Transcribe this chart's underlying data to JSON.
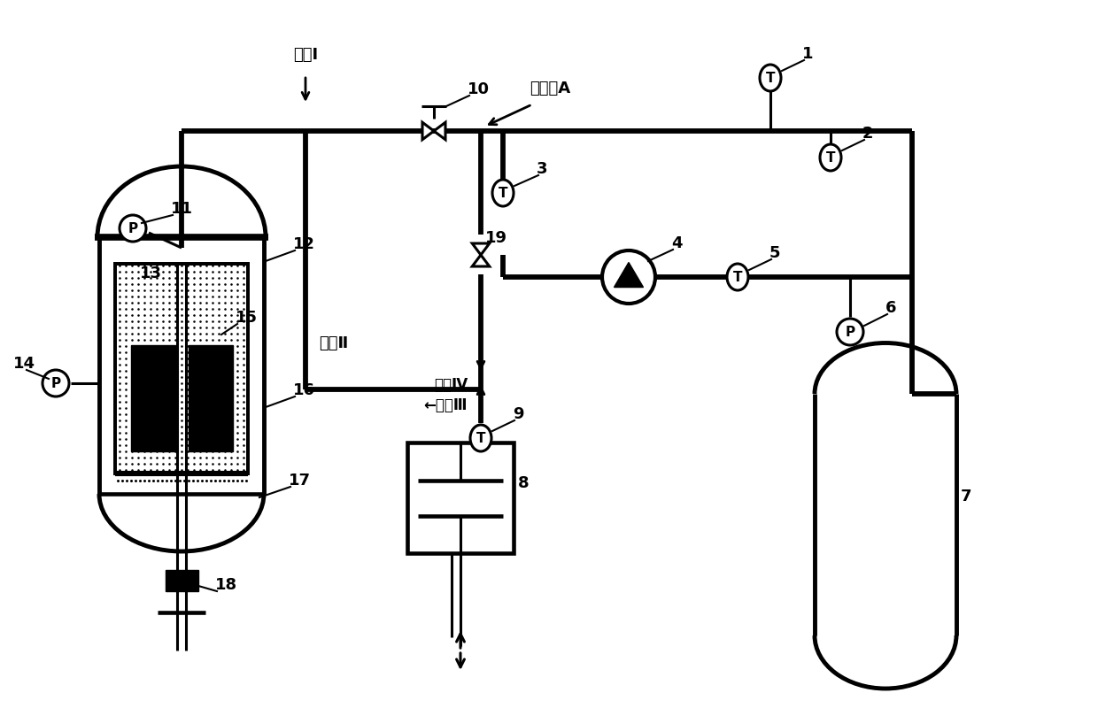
{
  "bg_color": "#ffffff",
  "lc": "#000000",
  "base_lw": 2.2,
  "labels": {
    "branch1": "支路Ⅰ",
    "branch2": "支路Ⅱ",
    "branch3": "支路Ⅲ",
    "branch4": "支路Ⅳ",
    "junctionA": "连接点A"
  },
  "fontsize_num": 13,
  "fontsize_label": 13
}
